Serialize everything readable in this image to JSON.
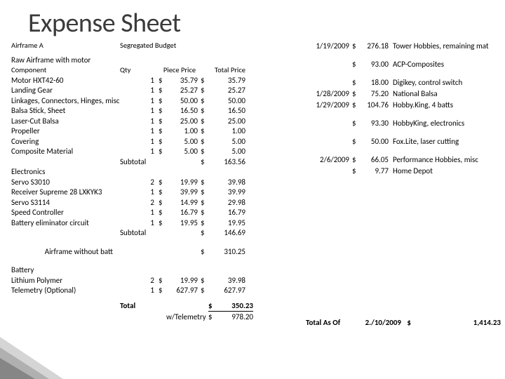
{
  "page_title": "Expense Sheet",
  "left": {
    "section_a": "Airframe A",
    "segregated": "Segregated Budget",
    "raw_airframe": "Raw Airframe with motor",
    "hdr_component": "Component",
    "hdr_qty": "Qty",
    "hdr_piece": "Piece Price",
    "hdr_total": "Total Price",
    "items1": [
      {
        "name": "Motor HXT42-60",
        "qty": "1",
        "d": "$",
        "pp": "35.79",
        "d2": "$",
        "tp": "35.79"
      },
      {
        "name": "Landing Gear",
        "qty": "1",
        "d": "$",
        "pp": "25.27",
        "d2": "$",
        "tp": "25.27"
      },
      {
        "name": "Linkages, Connectors, Hinges, misc",
        "qty": "1",
        "d": "$",
        "pp": "50.00",
        "d2": "$",
        "tp": "50.00"
      },
      {
        "name": "Balsa Stick, Sheet",
        "qty": "1",
        "d": "$",
        "pp": "16.50",
        "d2": "$",
        "tp": "16.50"
      },
      {
        "name": "Laser-Cut Balsa",
        "qty": "1",
        "d": "$",
        "pp": "25.00",
        "d2": "$",
        "tp": "25.00"
      },
      {
        "name": "Propeller",
        "qty": "1",
        "d": "$",
        "pp": "1.00",
        "d2": "$",
        "tp": "1.00"
      },
      {
        "name": "Covering",
        "qty": "1",
        "d": "$",
        "pp": "5.00",
        "d2": "$",
        "tp": "5.00"
      },
      {
        "name": "Composite Material",
        "qty": "1",
        "d": "$",
        "pp": "5.00",
        "d2": "$",
        "tp": "5.00"
      }
    ],
    "subtotal_lbl": "Subtotal",
    "subtotal1_d": "$",
    "subtotal1": "163.56",
    "electronics_lbl": "Electronics",
    "items2": [
      {
        "name": "Servo S3010",
        "qty": "2",
        "d": "$",
        "pp": "19.99",
        "d2": "$",
        "tp": "39.98"
      },
      {
        "name": "Receiver Supreme 28 LXKYK3",
        "qty": "1",
        "d": "$",
        "pp": "39.99",
        "d2": "$",
        "tp": "39.99"
      },
      {
        "name": "Servo S3114",
        "qty": "2",
        "d": "$",
        "pp": "14.99",
        "d2": "$",
        "tp": "29.98"
      },
      {
        "name": "Speed Controller",
        "qty": "1",
        "d": "$",
        "pp": "16.79",
        "d2": "$",
        "tp": "16.79"
      },
      {
        "name": "Battery eliminator circuit",
        "qty": "1",
        "d": "$",
        "pp": "19.95",
        "d2": "$",
        "tp": "19.95"
      }
    ],
    "subtotal2_d": "$",
    "subtotal2": "146.69",
    "airframe_wo_batt": "Airframe without batt",
    "awb_d": "$",
    "awb_val": "310.25",
    "battery_lbl": "Battery",
    "items3": [
      {
        "name": "Lithium Polymer",
        "qty": "2",
        "d": "$",
        "pp": "19.99",
        "d2": "$",
        "tp": "39.98"
      },
      {
        "name": "Telemetry (Optional)",
        "qty": "1",
        "d": "$",
        "pp": "627.97",
        "d2": "$",
        "tp": "627.97"
      }
    ],
    "total_lbl": "Total",
    "total_d": "$",
    "total_val": "350.23",
    "wtel_lbl": "w/Telemetry",
    "wtel_d": "$",
    "wtel_val": "978.20"
  },
  "right": {
    "rows": [
      {
        "date": "1/19/2009",
        "d": "$",
        "amt": "276.18",
        "desc": "Tower Hobbies, remaining mat"
      },
      {
        "date": "",
        "d": "$",
        "amt": "93.00",
        "desc": "ACP-Composites"
      },
      {
        "date": "",
        "d": "$",
        "amt": "18.00",
        "desc": "Digikey, control switch"
      },
      {
        "date": "1/28/2009",
        "d": "$",
        "amt": "75.20",
        "desc": "National Balsa"
      },
      {
        "date": "1/29/2009",
        "d": "$",
        "amt": "104.76",
        "desc": "Hobby.King, 4 batts"
      },
      {
        "date": "",
        "d": "$",
        "amt": "93.30",
        "desc": "HobbyKing, electronics"
      },
      {
        "date": "",
        "d": "$",
        "amt": "50.00",
        "desc": "Fox.Lite, laser cutting"
      },
      {
        "date": "2/6/2009",
        "d": "$",
        "amt": "66.05",
        "desc": "Performance Hobbies, misc"
      },
      {
        "date": "",
        "d": "$",
        "amt": "9.77",
        "desc": "Home Depot"
      }
    ],
    "total_as_of": "Total As Of",
    "total_date": "2./10/2009",
    "total_d": "$",
    "grand": "1,414.23"
  }
}
